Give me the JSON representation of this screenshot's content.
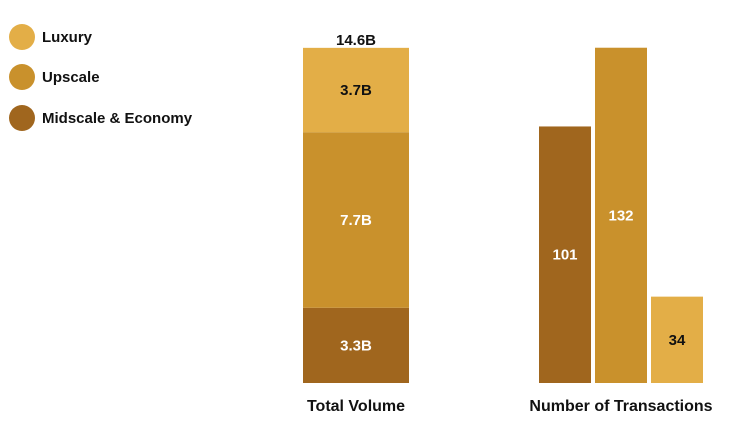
{
  "chart_data": [
    {
      "type": "bar",
      "stacked": true,
      "categories": [
        "Total Volume"
      ],
      "xlabel": "Total Volume",
      "total_label": "14.6B",
      "series": [
        {
          "name": "Midscale & Economy",
          "values": [
            3.3
          ],
          "label": "3.3B",
          "color": "#A0661E"
        },
        {
          "name": "Upscale",
          "values": [
            7.7
          ],
          "label": "7.7B",
          "color": "#C9912C"
        },
        {
          "name": "Luxury",
          "values": [
            3.7
          ],
          "label": "3.7B",
          "color": "#E3AE47"
        }
      ]
    },
    {
      "type": "bar",
      "xlabel": "Number of Transactions",
      "series": [
        {
          "name": "Midscale & Economy",
          "values": [
            101
          ],
          "label": "101",
          "color": "#A0661E"
        },
        {
          "name": "Upscale",
          "values": [
            132
          ],
          "label": "132",
          "color": "#C9912C"
        },
        {
          "name": "Luxury",
          "values": [
            34
          ],
          "label": "34",
          "color": "#E3AE47"
        }
      ]
    }
  ],
  "legend": {
    "position": "top-left",
    "items": [
      {
        "label": "Luxury",
        "color": "#E3AE47"
      },
      {
        "label": "Upscale",
        "color": "#C9912C"
      },
      {
        "label": "Midscale & Economy",
        "color": "#A0661E"
      }
    ]
  }
}
